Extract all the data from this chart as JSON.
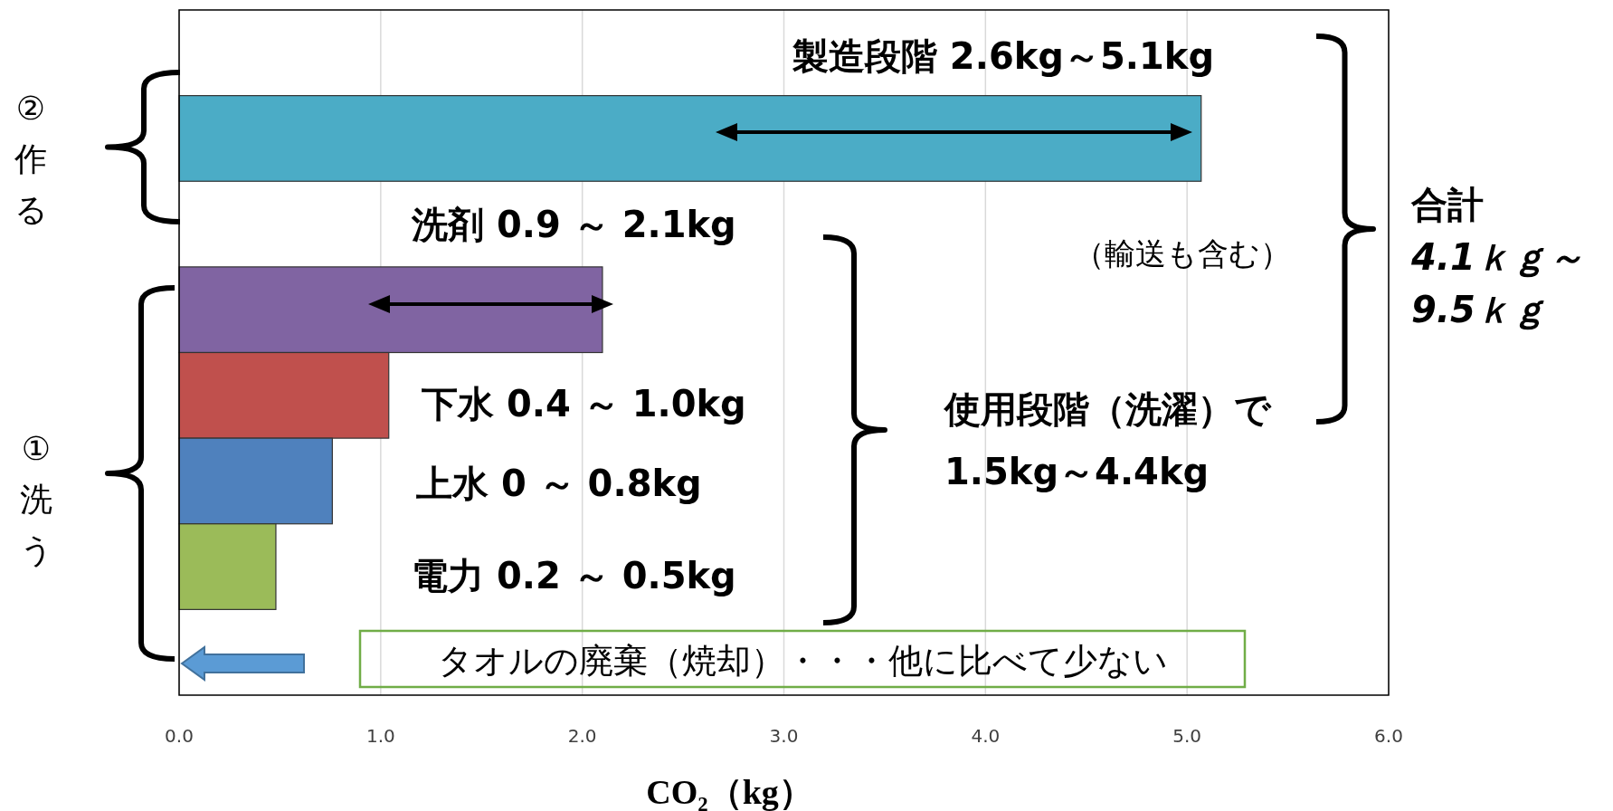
{
  "chart_data": {
    "type": "bar",
    "orientation": "horizontal",
    "categories": [
      null,
      null,
      null,
      null,
      null,
      null,
      null,
      null
    ],
    "values": [
      null,
      5.07,
      null,
      2.1,
      1.04,
      0.76,
      0.48,
      null
    ],
    "colors": [
      null,
      "#4bacc6",
      null,
      "#8064a2",
      "#c0504d",
      "#4f81bd",
      "#9bbb59",
      null
    ],
    "xlim": [
      0,
      6
    ],
    "xticks": [
      {
        "value": 0,
        "label": "0.0"
      },
      {
        "value": 1,
        "label": "1.0"
      },
      {
        "value": 2,
        "label": "2.0"
      },
      {
        "value": 3,
        "label": "3.0"
      },
      {
        "value": 4,
        "label": "4.0"
      },
      {
        "value": 5,
        "label": "5.0"
      },
      {
        "value": 6,
        "label": "6.0"
      }
    ],
    "xlabel": "CO₂（kg）",
    "grid": "x",
    "tick_labels": "x",
    "annotations": [
      "製造段階  2.6kg～5.1kg",
      "洗剤  0.9  ～  2.1kg",
      "（輸送も含む）",
      "下水  0.4  ～  1.0kg",
      "上水  0  ～  0.8kg",
      "電力  0.2  ～  0.5kg",
      "使用段階（洗濯）で",
      "1.5kg～4.4kg",
      "タオルの廃棄（焼却）・・・他に比べて少ない",
      "合計",
      "4.1ｋｇ～",
      "9.5ｋｇ",
      "②作る",
      "①洗う"
    ]
  }
}
